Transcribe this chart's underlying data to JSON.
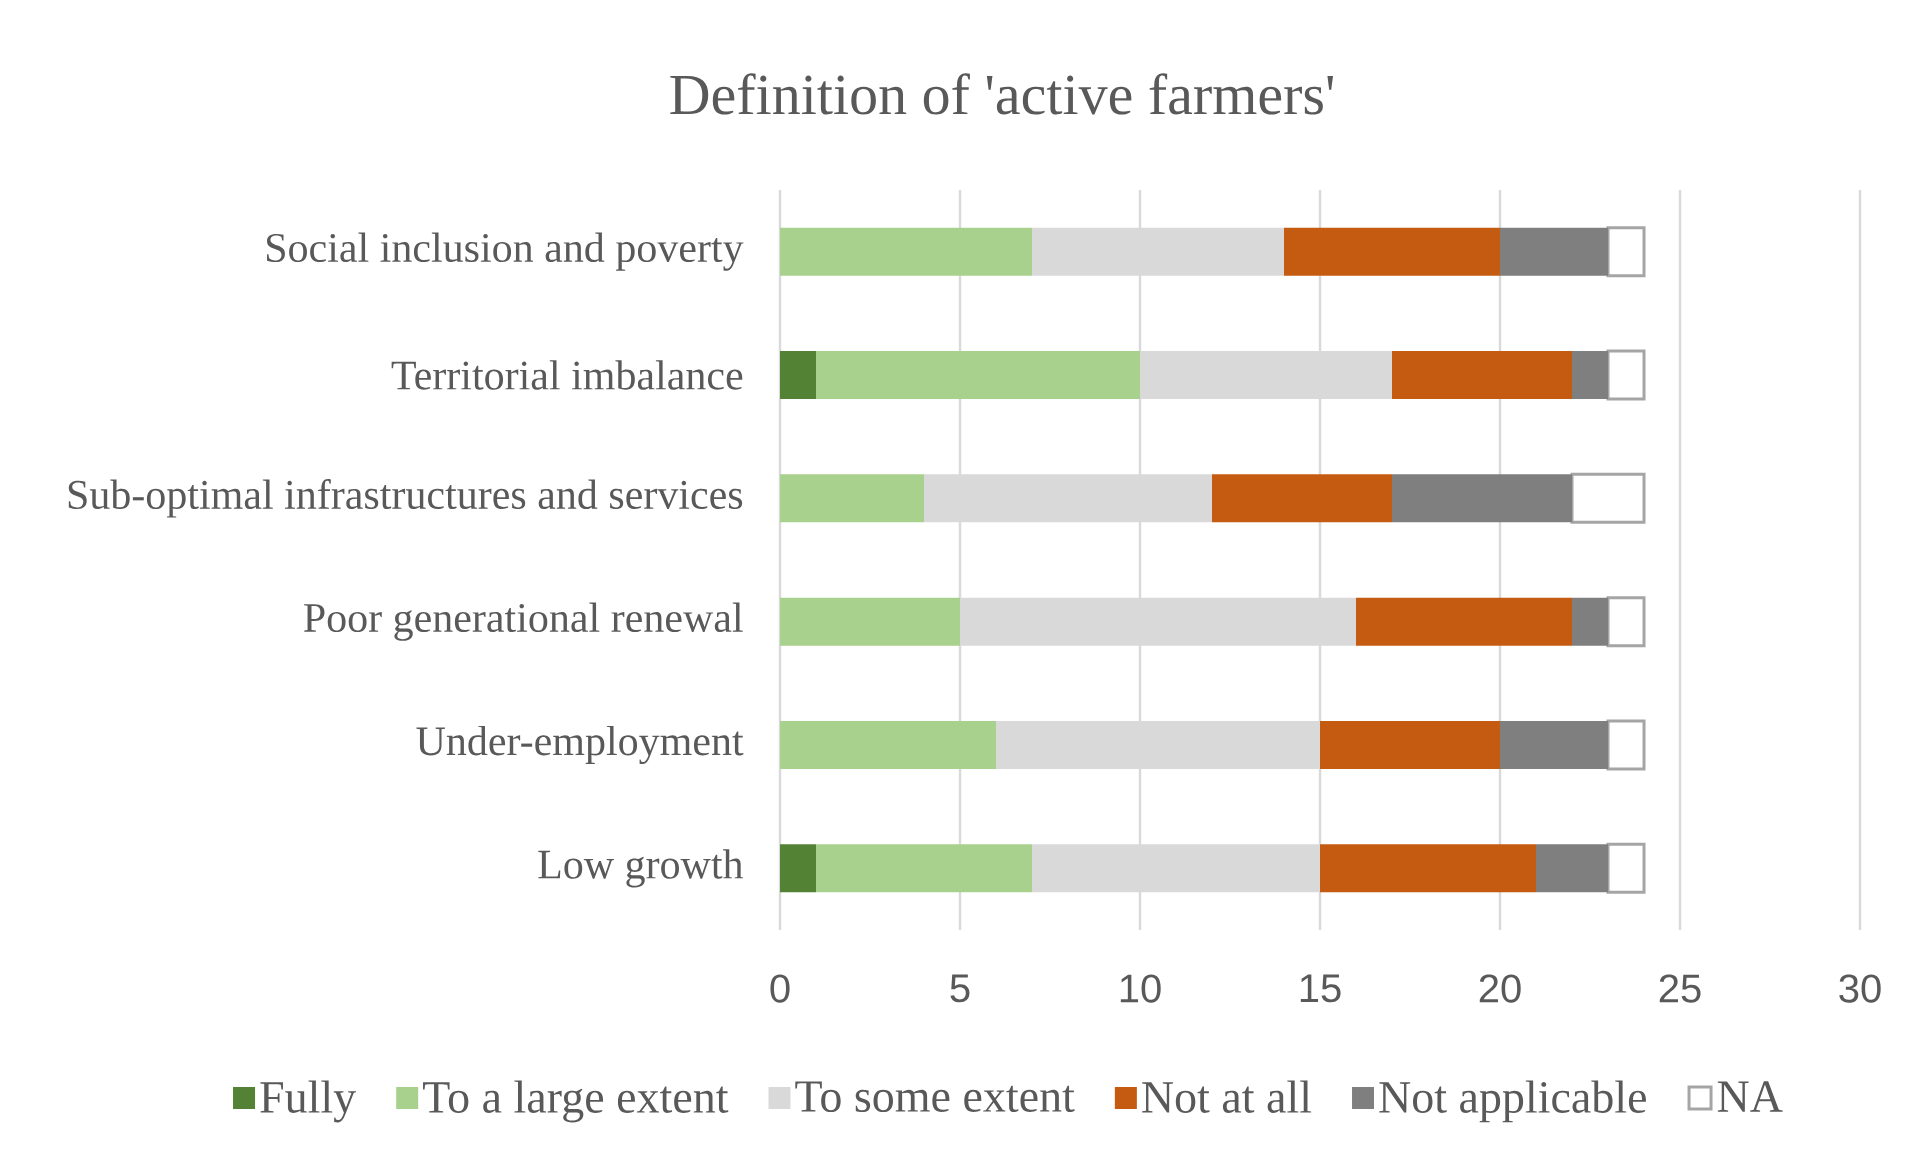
{
  "chart_data": {
    "type": "bar",
    "orientation": "horizontal",
    "stacked": true,
    "title": "Definition of 'active farmers'",
    "categories": [
      "Social inclusion and poverty",
      "Territorial imbalance",
      "Sub-optimal infrastructures and services",
      "Poor generational renewal",
      "Under-employment",
      "Low growth"
    ],
    "series": [
      {
        "name": "Fully",
        "color": "#548235",
        "values": [
          0,
          1,
          0,
          0,
          0,
          1
        ]
      },
      {
        "name": "To a large extent",
        "color": "#a9d18e",
        "values": [
          7,
          9,
          4,
          5,
          6,
          6
        ]
      },
      {
        "name": "To some extent",
        "color": "#d9d9d9",
        "values": [
          7,
          7,
          8,
          11,
          9,
          8
        ]
      },
      {
        "name": "Not at all",
        "color": "#c55a11",
        "values": [
          6,
          5,
          5,
          6,
          5,
          6
        ]
      },
      {
        "name": "Not applicable",
        "color": "#7f7f7f",
        "values": [
          3,
          1,
          5,
          1,
          3,
          2
        ]
      },
      {
        "name": "NA",
        "color": "#ffffff",
        "values": [
          1,
          1,
          2,
          1,
          1,
          1
        ]
      }
    ],
    "xlim": [
      0,
      30
    ],
    "xticks": [
      0,
      5,
      10,
      15,
      20,
      25,
      30
    ],
    "grid": "x",
    "legend": "bottom"
  }
}
